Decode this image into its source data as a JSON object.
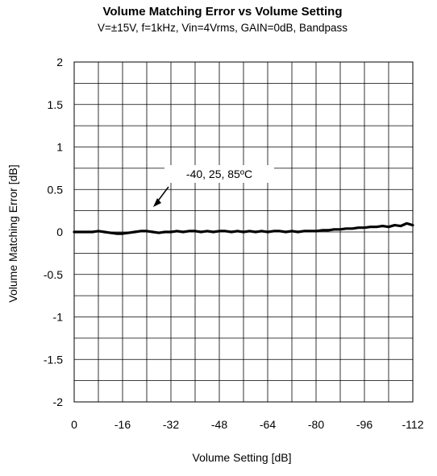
{
  "chart_data": {
    "type": "line",
    "title": "Volume Matching Error vs Volume Setting",
    "subtitle": "V=±15V, f=1kHz, Vin=4Vrms, GAIN=0dB, Bandpass",
    "xlabel": "Volume Setting [dB]",
    "ylabel": "Volume Matching Error [dB]",
    "xlim": [
      0,
      -112
    ],
    "ylim": [
      -2,
      2
    ],
    "x_ticks": [
      0,
      -16,
      -32,
      -48,
      -64,
      -80,
      -96,
      -112
    ],
    "x_tick_labels": [
      "0",
      "-16",
      "-32",
      "-48",
      "-64",
      "-80",
      "-96",
      "-112"
    ],
    "y_ticks": [
      2,
      1.5,
      1,
      0.5,
      0,
      -0.5,
      -1,
      -1.5,
      -2
    ],
    "y_tick_labels": [
      "2",
      "1.5",
      "1",
      "0.5",
      "0",
      "-0.5",
      "-1",
      "-1.5",
      "-2"
    ],
    "grid": true,
    "annotation": "-40, 25, 85ºC",
    "series": [
      {
        "color": "#000000",
        "x": [
          0,
          -2,
          -4,
          -6,
          -8,
          -10,
          -12,
          -14,
          -16,
          -18,
          -20,
          -22,
          -24,
          -26,
          -28,
          -30,
          -32,
          -34,
          -36,
          -38,
          -40,
          -42,
          -44,
          -46,
          -48,
          -50,
          -52,
          -54,
          -56,
          -58,
          -60,
          -62,
          -64,
          -66,
          -68,
          -70,
          -72,
          -74,
          -76,
          -78,
          -80,
          -82,
          -84,
          -86,
          -88,
          -90,
          -92,
          -94,
          -96,
          -98,
          -100,
          -102,
          -104,
          -106,
          -108,
          -110,
          -112
        ],
        "values": [
          0,
          0,
          0,
          0,
          0.01,
          0,
          -0.01,
          -0.02,
          -0.02,
          -0.01,
          0,
          0.01,
          0.01,
          0,
          -0.01,
          0,
          0,
          0.01,
          0,
          0.01,
          0.01,
          0,
          0.01,
          0,
          0.01,
          0.01,
          0,
          0.01,
          0,
          0.01,
          0,
          0.01,
          0,
          0.01,
          0.01,
          0,
          0.01,
          0,
          0.01,
          0.01,
          0.01,
          0.02,
          0.02,
          0.03,
          0.03,
          0.04,
          0.04,
          0.05,
          0.05,
          0.06,
          0.06,
          0.07,
          0.06,
          0.08,
          0.07,
          0.1,
          0.08
        ]
      }
    ]
  }
}
